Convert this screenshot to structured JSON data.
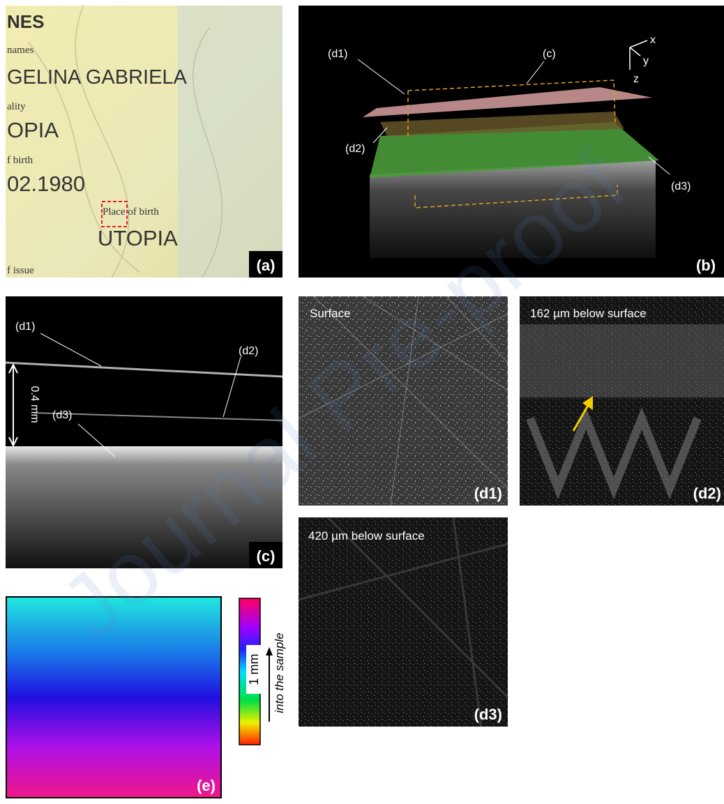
{
  "panels": {
    "a": {
      "label": "(a)",
      "texts": [
        "NES",
        "names",
        "GELINA GABRIELA",
        "ality",
        "OPIA",
        "f birth",
        "02.1980",
        "Place of birth",
        "UTOPIA",
        "f issue"
      ]
    },
    "b": {
      "label": "(b)",
      "annotations": [
        "(d1)",
        "(c)",
        "(d2)",
        "(d3)"
      ],
      "axes": [
        "x",
        "y",
        "z"
      ]
    },
    "c": {
      "label": "(c)",
      "annotations": [
        "(d1)",
        "(d2)",
        "(d3)"
      ],
      "scale": "0.4 mm"
    },
    "d1": {
      "caption": "Surface",
      "label": "(d1)"
    },
    "d2": {
      "caption": "162 µm below surface",
      "label": "(d2)"
    },
    "d3": {
      "caption": "420 µm below surface",
      "label": "(d3)"
    },
    "e": {
      "label": "(e)",
      "scale": "1 mm",
      "direction": "into the sample"
    }
  },
  "watermark": "Journal Pre-proof"
}
